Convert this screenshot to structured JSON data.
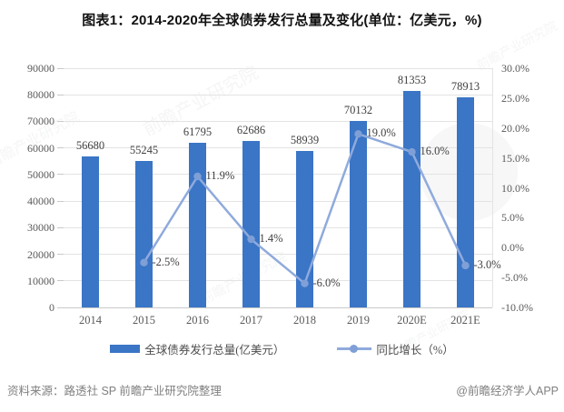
{
  "title": "图表1：2014-2020年全球债券发行总量及变化(单位：亿美元，%)",
  "watermark_text": "前瞻产业研究院",
  "footer": {
    "source": "资料来源：路透社 SP 前瞻产业研究院整理",
    "brand": "@前瞻经济学人APP"
  },
  "colors": {
    "bar": "#3A75C6",
    "line": "#8FAADC",
    "marker": "#7F9FD6",
    "grid": "#E3E3E3",
    "baseline": "#C9C9C9",
    "axis_text": "#595959",
    "label_text": "#3F3F3F",
    "title_text": "#111111",
    "legend_text": "#4D4D4D",
    "footer_text": "#808080"
  },
  "chart_data": {
    "type": "bar+line combo",
    "title": "图表1：2014-2020年全球债券发行总量及变化(单位：亿美元，%)",
    "categories": [
      "2014",
      "2015",
      "2016",
      "2017",
      "2018",
      "2019",
      "2020E",
      "2021E"
    ],
    "series": [
      {
        "name": "全球债券发行总量(亿美元）",
        "type": "bar",
        "axis": "left",
        "values": [
          56680,
          55245,
          61795,
          62686,
          58939,
          70132,
          81353,
          78913
        ],
        "labels": [
          "56680",
          "55245",
          "61795",
          "62686",
          "58939",
          "70132",
          "81353",
          "78913"
        ]
      },
      {
        "name": "同比增长（%）",
        "type": "line",
        "axis": "right",
        "values": [
          null,
          -2.5,
          11.9,
          1.4,
          -6.0,
          19.0,
          16.0,
          -3.0
        ],
        "labels": [
          "",
          "-2.5%",
          "11.9%",
          "1.4%",
          "-6.0%",
          "19.0%",
          "16.0%",
          "-3.0%"
        ]
      }
    ],
    "left_axis": {
      "min": 0,
      "max": 90000,
      "step": 10000,
      "ticks": [
        "0",
        "10000",
        "20000",
        "30000",
        "40000",
        "50000",
        "60000",
        "70000",
        "80000",
        "90000"
      ]
    },
    "right_axis": {
      "min": -10,
      "max": 30,
      "step": 5,
      "ticks": [
        "-10.0%",
        "-5.0%",
        "0.0%",
        "5.0%",
        "10.0%",
        "15.0%",
        "20.0%",
        "25.0%",
        "30.0%"
      ]
    },
    "grid": "horizontal",
    "legend_position": "bottom"
  }
}
